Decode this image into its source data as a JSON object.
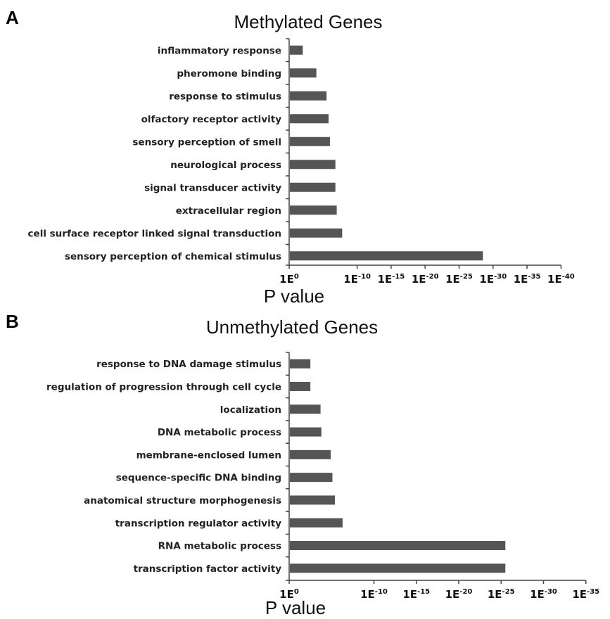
{
  "colors": {
    "bar": "#555555",
    "axis": "#444444",
    "background": "#ffffff"
  },
  "chart_data": [
    {
      "type": "bar",
      "orientation": "horizontal",
      "panel": "A",
      "title": "Methylated Genes",
      "xlabel": "P value",
      "x_scale": "log (-log10 p, displayed as 1E^-n)",
      "xlim": [
        0,
        40
      ],
      "x_ticks": [
        {
          "base": "1E",
          "exp": "0",
          "value": 0
        },
        {
          "base": "1E",
          "exp": "-10",
          "value": 10
        },
        {
          "base": "1E",
          "exp": "-15",
          "value": 15
        },
        {
          "base": "1E",
          "exp": "-20",
          "value": 20
        },
        {
          "base": "1E",
          "exp": "-25",
          "value": 25
        },
        {
          "base": "1E",
          "exp": "-30",
          "value": 30
        },
        {
          "base": "1E",
          "exp": "-35",
          "value": 35
        },
        {
          "base": "1E",
          "exp": "-40",
          "value": 40
        }
      ],
      "categories": [
        "inflammatory response",
        "pheromone binding",
        "response to stimulus",
        "olfactory receptor activity",
        "sensory perception of smell",
        "neurological process",
        "signal transducer activity",
        "extracellular region",
        "cell surface receptor linked signal transduction",
        "sensory perception of chemical stimulus"
      ],
      "values": [
        2,
        4,
        5.5,
        5.8,
        6,
        6.8,
        6.8,
        7,
        7.8,
        28.5
      ],
      "grid": false,
      "legend": "none"
    },
    {
      "type": "bar",
      "orientation": "horizontal",
      "panel": "B",
      "title": "Unmethylated Genes",
      "xlabel": "P value",
      "x_scale": "log (-log10 p, displayed as 1E^-n)",
      "xlim": [
        0,
        35
      ],
      "x_ticks": [
        {
          "base": "1E",
          "exp": "0",
          "value": 0
        },
        {
          "base": "1E",
          "exp": "-10",
          "value": 10
        },
        {
          "base": "1E",
          "exp": "-15",
          "value": 15
        },
        {
          "base": "1E",
          "exp": "-20",
          "value": 20
        },
        {
          "base": "1E",
          "exp": "-25",
          "value": 25
        },
        {
          "base": "1E",
          "exp": "-30",
          "value": 30
        },
        {
          "base": "1E",
          "exp": "-35",
          "value": 35
        }
      ],
      "categories": [
        "response to DNA damage stimulus",
        "regulation of progression through cell cycle",
        "localization",
        "DNA metabolic process",
        "membrane-enclosed lumen",
        "sequence-specific DNA binding",
        "anatomical structure morphogenesis",
        "transcription regulator activity",
        "RNA metabolic process",
        "transcription factor activity"
      ],
      "values": [
        2.5,
        2.5,
        3.7,
        3.8,
        4.9,
        5.1,
        5.4,
        6.3,
        25.5,
        25.5
      ],
      "grid": false,
      "legend": "none"
    }
  ]
}
